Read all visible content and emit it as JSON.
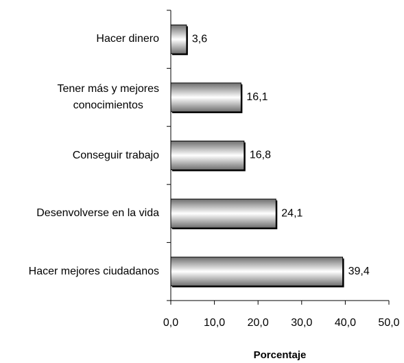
{
  "chart_data": {
    "type": "bar",
    "orientation": "horizontal",
    "categories": [
      "Hacer dinero",
      "Tener más y mejores\nconocimientos",
      "Conseguir trabajo",
      "Desenvolverse en la vida",
      "Hacer mejores ciudadanos"
    ],
    "values": [
      3.6,
      16.1,
      16.8,
      24.1,
      39.4
    ],
    "value_labels": [
      "3,6",
      "16,1",
      "16,8",
      "24,1",
      "39,4"
    ],
    "color": "#9a9a9a",
    "xlim": [
      0,
      50
    ],
    "xticks": [
      {
        "value": 0,
        "label": "0,0"
      },
      {
        "value": 10,
        "label": "10,0"
      },
      {
        "value": 20,
        "label": "20,0"
      },
      {
        "value": 30,
        "label": "30,0"
      },
      {
        "value": 40,
        "label": "40,0"
      },
      {
        "value": 50,
        "label": "50,0"
      }
    ],
    "xlabel": "Porcentaje"
  }
}
